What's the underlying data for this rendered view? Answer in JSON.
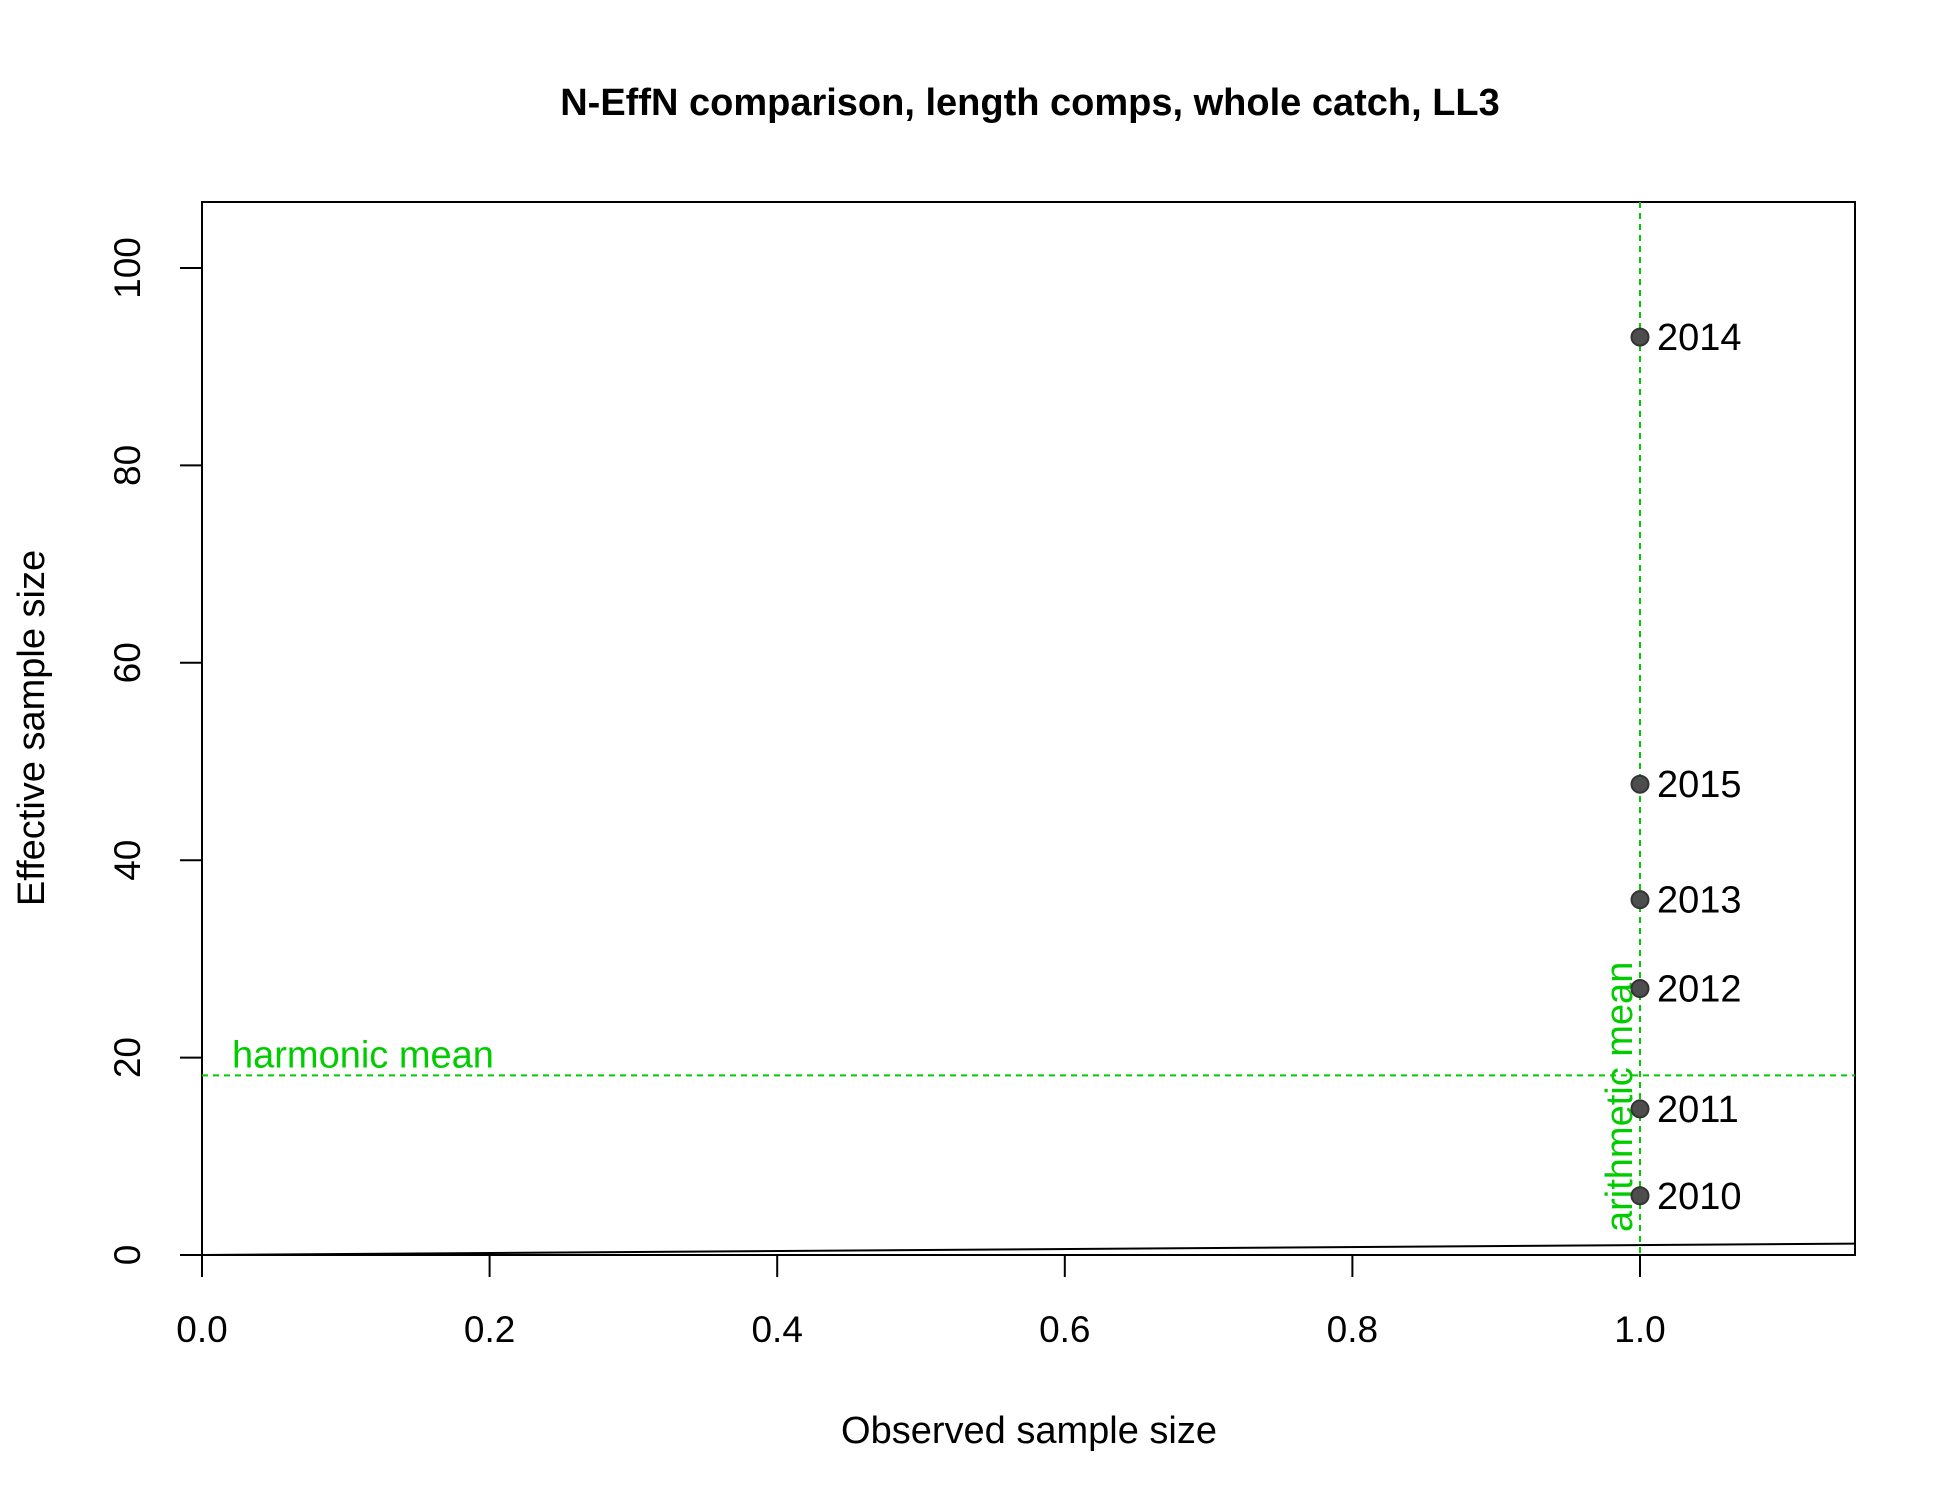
{
  "chart_data": {
    "type": "scatter",
    "title": "N-EffN comparison, length comps, whole catch, LL3",
    "xlabel": "Observed sample size",
    "ylabel": "Effective sample size",
    "xlim": [
      0,
      1.15
    ],
    "ylim": [
      0,
      100
    ],
    "xticks": [
      "0.0",
      "0.2",
      "0.4",
      "0.6",
      "0.8",
      "1.0"
    ],
    "yticks": [
      "0",
      "20",
      "40",
      "60",
      "80",
      "100"
    ],
    "grid": false,
    "points": [
      {
        "year": "2010",
        "x": 1.0,
        "y": 6.0
      },
      {
        "year": "2011",
        "x": 1.0,
        "y": 14.8
      },
      {
        "year": "2012",
        "x": 1.0,
        "y": 27.0
      },
      {
        "year": "2013",
        "x": 1.0,
        "y": 36.0
      },
      {
        "year": "2014",
        "x": 1.0,
        "y": 93.0
      },
      {
        "year": "2015",
        "x": 1.0,
        "y": 47.7
      }
    ],
    "reference_lines": {
      "one_to_one": {
        "from": [
          0,
          0
        ],
        "to": [
          1.15,
          1.15
        ]
      },
      "harmonic_mean": {
        "label": "harmonic mean",
        "y": 18.2
      },
      "arithmetic_mean": {
        "label": "arithmetic mean",
        "x": 1.0
      }
    },
    "colors": {
      "point_fill": "#4d4d4d",
      "point_stroke": "#333333",
      "reference": "#00cc00",
      "axis": "#000000"
    }
  }
}
